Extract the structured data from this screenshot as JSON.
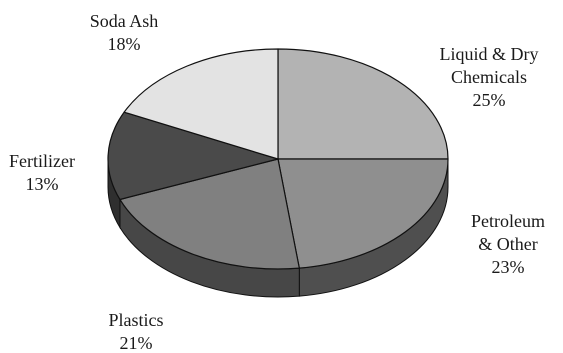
{
  "chart_data": {
    "type": "pie",
    "title": "",
    "style": "3d-extruded",
    "slices": [
      {
        "name_lines": [
          "Liquid & Dry",
          "Chemicals"
        ],
        "label": "Liquid & Dry Chemicals",
        "pct_text": "25%",
        "value": 25,
        "top_color": "#b3b3b3",
        "side_color": "#6a6a6a"
      },
      {
        "name_lines": [
          "Petroleum",
          "& Other"
        ],
        "label": "Petroleum & Other",
        "pct_text": "23%",
        "value": 23,
        "top_color": "#8f8f8f",
        "side_color": "#4f4f4f"
      },
      {
        "name_lines": [
          "Plastics"
        ],
        "label": "Plastics",
        "pct_text": "21%",
        "value": 21,
        "top_color": "#808080",
        "side_color": "#474747"
      },
      {
        "name_lines": [
          "Fertilizer"
        ],
        "label": "Fertilizer",
        "pct_text": "13%",
        "value": 13,
        "top_color": "#4a4a4a",
        "side_color": "#2f2f2f"
      },
      {
        "name_lines": [
          "Soda Ash"
        ],
        "label": "Soda Ash",
        "pct_text": "18%",
        "value": 18,
        "top_color": "#e3e3e3",
        "side_color": "#9a9a9a"
      }
    ]
  }
}
